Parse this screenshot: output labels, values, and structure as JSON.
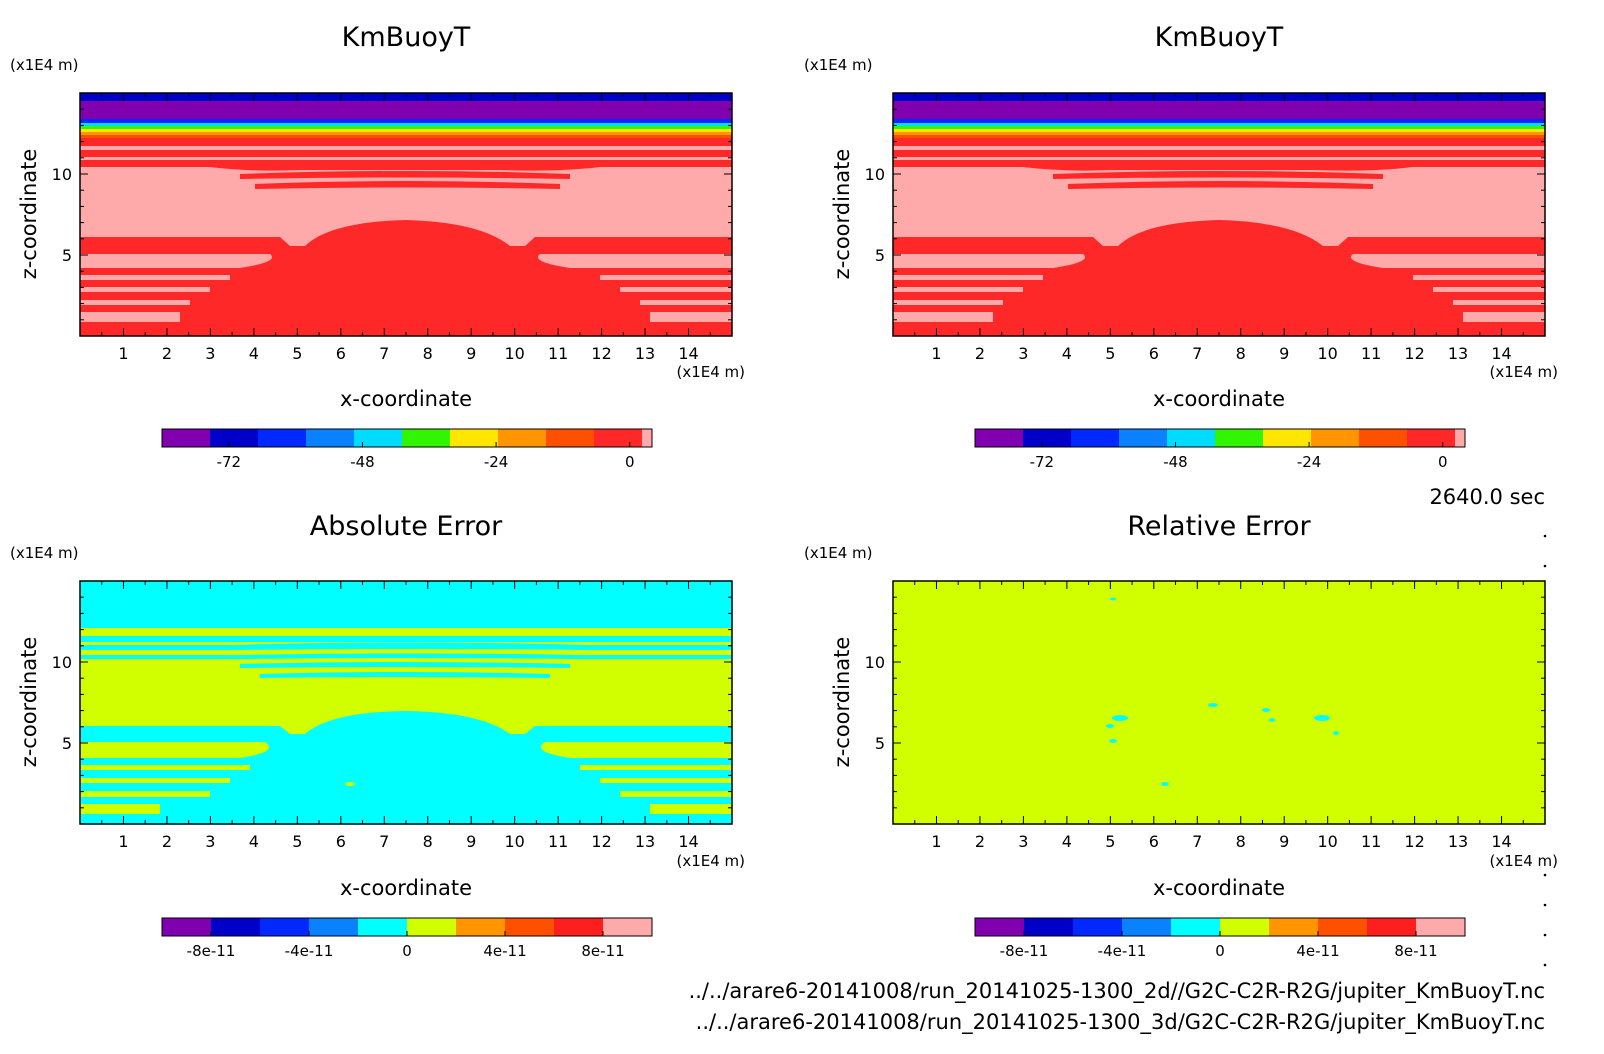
{
  "chart_data": [
    {
      "type": "heatmap",
      "title": "KmBuoyT",
      "xlabel": "x-coordinate",
      "ylabel": "z-coordinate",
      "x_unit": "(x1E4 m)",
      "y_unit": "(x1E4 m)",
      "x_ticks": [
        "1",
        "2",
        "3",
        "4",
        "5",
        "6",
        "7",
        "8",
        "9",
        "10",
        "11",
        "12",
        "13",
        "14"
      ],
      "y_ticks": [
        "5",
        "10"
      ],
      "xlim": [
        0,
        15
      ],
      "ylim": [
        0,
        15
      ],
      "colorbar": {
        "colors": [
          "#8000b0",
          "#0000c8",
          "#0028ff",
          "#0a82ff",
          "#00dcff",
          "#32f500",
          "#ffe600",
          "#ff9600",
          "#ff5000",
          "#ff2828",
          "#ffaaaa"
        ],
        "tick_labels": [
          "-72",
          "-48",
          "-24",
          "0"
        ],
        "tick_values": [
          -72,
          -48,
          -24,
          0
        ],
        "range": [
          -84,
          4
        ]
      }
    },
    {
      "type": "heatmap",
      "title": "KmBuoyT",
      "xlabel": "x-coordinate",
      "ylabel": "z-coordinate",
      "x_unit": "(x1E4 m)",
      "y_unit": "(x1E4 m)",
      "x_ticks": [
        "1",
        "2",
        "3",
        "4",
        "5",
        "6",
        "7",
        "8",
        "9",
        "10",
        "11",
        "12",
        "13",
        "14"
      ],
      "y_ticks": [
        "5",
        "10"
      ],
      "xlim": [
        0,
        15
      ],
      "ylim": [
        0,
        15
      ],
      "colorbar": {
        "colors": [
          "#8000b0",
          "#0000c8",
          "#0028ff",
          "#0a82ff",
          "#00dcff",
          "#32f500",
          "#ffe600",
          "#ff9600",
          "#ff5000",
          "#ff2828",
          "#ffaaaa"
        ],
        "tick_labels": [
          "-72",
          "-48",
          "-24",
          "0"
        ],
        "tick_values": [
          -72,
          -48,
          -24,
          0
        ],
        "range": [
          -84,
          4
        ]
      }
    },
    {
      "type": "heatmap",
      "title": "Absolute Error",
      "xlabel": "x-coordinate",
      "ylabel": "z-coordinate",
      "x_unit": "(x1E4 m)",
      "y_unit": "(x1E4 m)",
      "x_ticks": [
        "1",
        "2",
        "3",
        "4",
        "5",
        "6",
        "7",
        "8",
        "9",
        "10",
        "11",
        "12",
        "13",
        "14"
      ],
      "y_ticks": [
        "5",
        "10"
      ],
      "xlim": [
        0,
        15
      ],
      "ylim": [
        0,
        15
      ],
      "colorbar": {
        "colors": [
          "#8000b0",
          "#0000c8",
          "#0028ff",
          "#0a82ff",
          "#00ffff",
          "#d2ff00",
          "#ff9600",
          "#ff5000",
          "#ff1e1e",
          "#ffaaaa"
        ],
        "tick_labels": [
          "-8e-11",
          "-4e-11",
          "0",
          "4e-11",
          "8e-11"
        ],
        "tick_values": [
          -8e-11,
          -4e-11,
          0,
          4e-11,
          8e-11
        ]
      }
    },
    {
      "type": "heatmap",
      "title": "Relative Error",
      "xlabel": "x-coordinate",
      "ylabel": "z-coordinate",
      "x_unit": "(x1E4 m)",
      "y_unit": "(x1E4 m)",
      "x_ticks": [
        "1",
        "2",
        "3",
        "4",
        "5",
        "6",
        "7",
        "8",
        "9",
        "10",
        "11",
        "12",
        "13",
        "14"
      ],
      "y_ticks": [
        "5",
        "10"
      ],
      "xlim": [
        0,
        15
      ],
      "ylim": [
        0,
        15
      ],
      "colorbar": {
        "colors": [
          "#8000b0",
          "#0000c8",
          "#0028ff",
          "#0a82ff",
          "#00ffff",
          "#d2ff00",
          "#ff9600",
          "#ff5000",
          "#ff1e1e",
          "#ffaaaa"
        ],
        "tick_labels": [
          "-8e-11",
          "-4e-11",
          "0",
          "4e-11",
          "8e-11"
        ],
        "tick_values": [
          -8e-11,
          -4e-11,
          0,
          4e-11,
          8e-11
        ]
      }
    }
  ],
  "time_label": "2640.0 sec",
  "files": [
    "../../arare6-20141008/run_20141025-1300_2d//G2C-C2R-R2G/jupiter_KmBuoyT.nc",
    "../../arare6-20141008/run_20141025-1300_3d/G2C-C2R-R2G/jupiter_KmBuoyT.nc"
  ],
  "field_colors": {
    "kmbuoyt_dark_red": "#ff2828",
    "kmbuoyt_pink": "#ffaaaa",
    "error_cyan": "#00ffff",
    "error_yellow": "#d2ff00"
  }
}
